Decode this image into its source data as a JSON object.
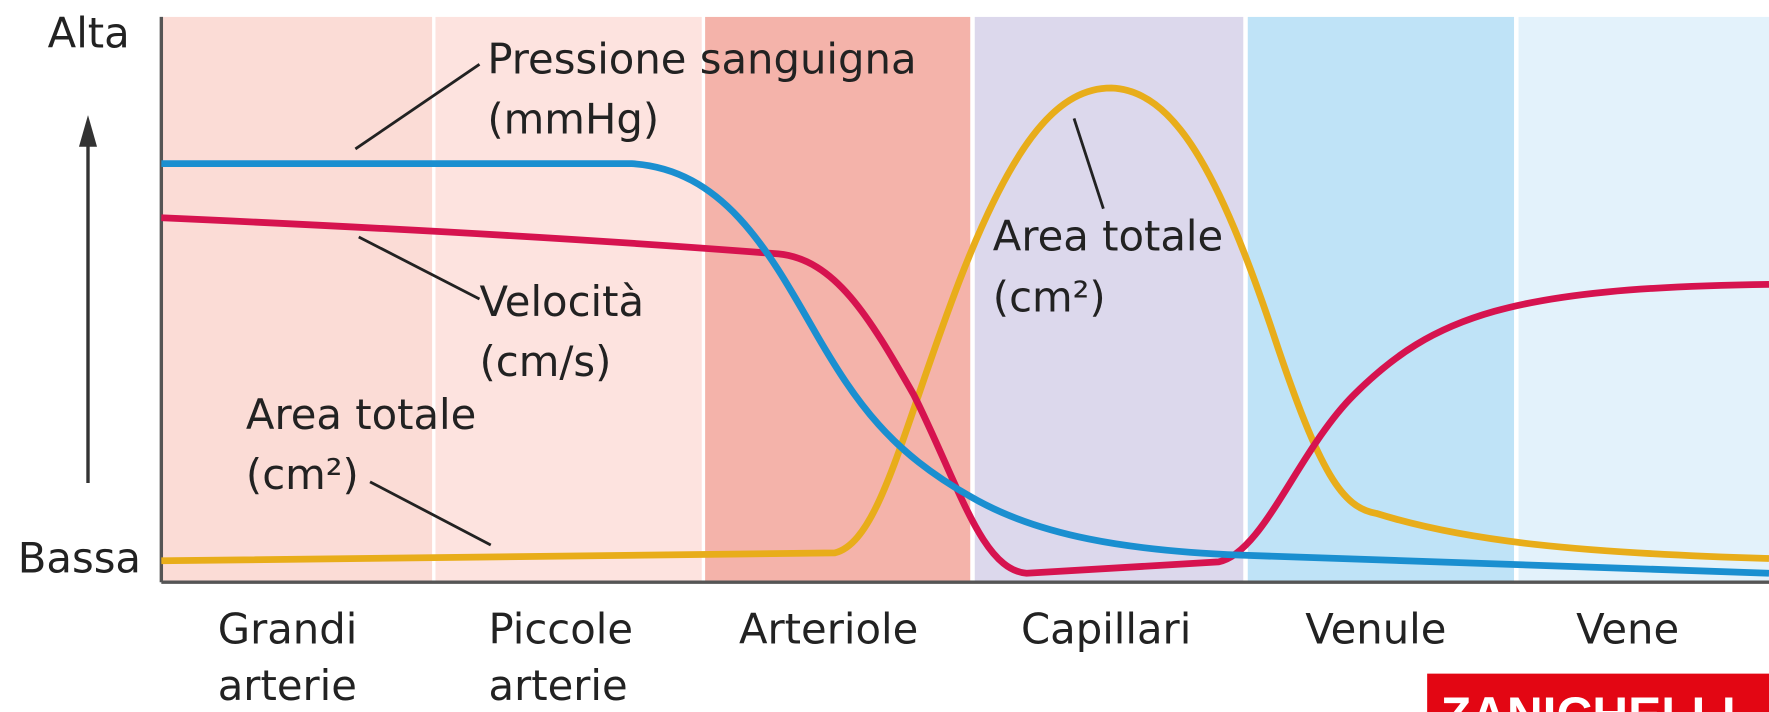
{
  "axis": {
    "high": "Alta",
    "low": "Bassa"
  },
  "categories": [
    "Grandi|arterie",
    "Piccole|arterie",
    "Arteriole",
    "Capillari",
    "Venule",
    "Vene"
  ],
  "category_lines": [
    [
      "Grandi",
      "arterie"
    ],
    [
      "Piccole",
      "arterie"
    ],
    [
      "Arteriole"
    ],
    [
      "Capillari"
    ],
    [
      "Venule"
    ],
    [
      "Vene"
    ]
  ],
  "annotations": {
    "pressure": [
      "Pressione sanguigna",
      "(mmHg)"
    ],
    "velocity": [
      "Velocità",
      "(cm/s)"
    ],
    "area_left": [
      "Area totale",
      "(cm²)"
    ],
    "area_right": [
      "Area totale",
      "(cm²)"
    ]
  },
  "logo": "ZANICHELLI"
}
